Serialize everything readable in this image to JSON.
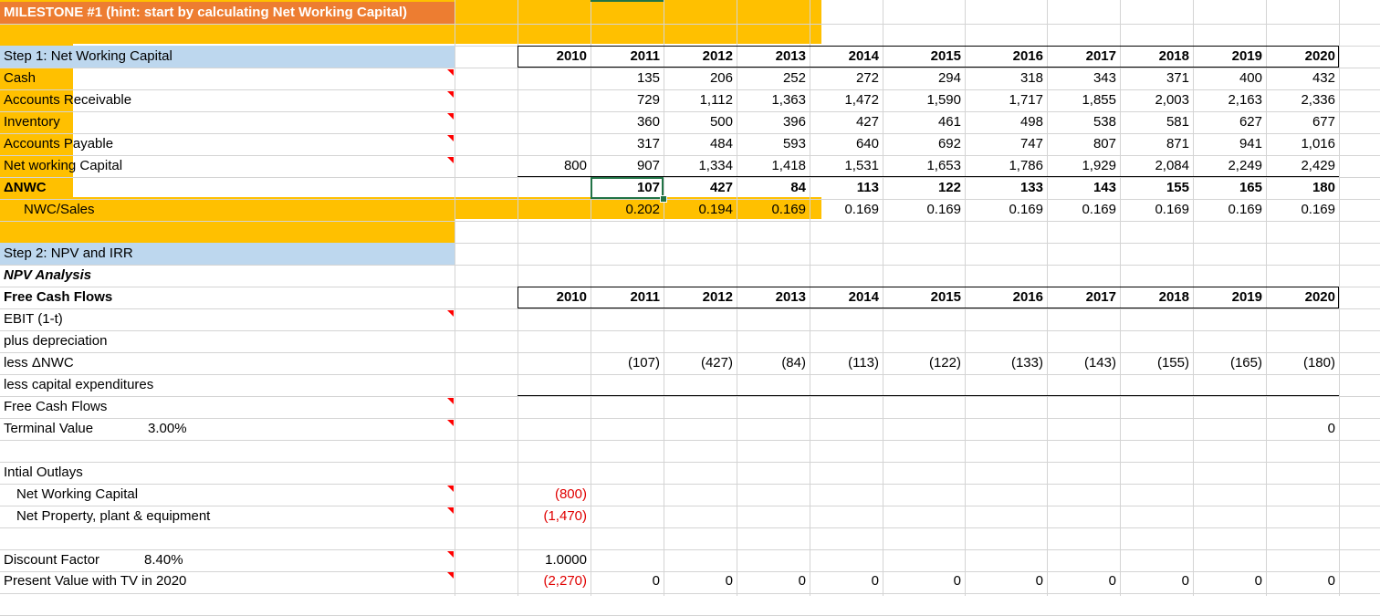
{
  "milestone_title": "MILESTONE #1 (hint: start by calculating Net Working Capital)",
  "years": [
    "2010",
    "2011",
    "2012",
    "2013",
    "2014",
    "2015",
    "2016",
    "2017",
    "2018",
    "2019",
    "2020"
  ],
  "step1": {
    "title": "Step 1: Net Working Capital",
    "rows": [
      {
        "label": "Cash",
        "values": [
          "",
          "135",
          "206",
          "252",
          "272",
          "294",
          "318",
          "343",
          "371",
          "400",
          "432"
        ],
        "bold": false
      },
      {
        "label": "Accounts Receivable",
        "values": [
          "",
          "729",
          "1,112",
          "1,363",
          "1,472",
          "1,590",
          "1,717",
          "1,855",
          "2,003",
          "2,163",
          "2,336"
        ],
        "bold": false
      },
      {
        "label": "Inventory",
        "values": [
          "",
          "360",
          "500",
          "396",
          "427",
          "461",
          "498",
          "538",
          "581",
          "627",
          "677"
        ],
        "bold": false
      },
      {
        "label": "Accounts Payable",
        "values": [
          "",
          "317",
          "484",
          "593",
          "640",
          "692",
          "747",
          "807",
          "871",
          "941",
          "1,016"
        ],
        "bold": false
      },
      {
        "label": "Net working Capital",
        "values": [
          "800",
          "907",
          "1,334",
          "1,418",
          "1,531",
          "1,653",
          "1,786",
          "1,929",
          "2,084",
          "2,249",
          "2,429"
        ],
        "bold": false
      },
      {
        "label": "ΔNWC",
        "values": [
          "",
          "107",
          "427",
          "84",
          "113",
          "122",
          "133",
          "143",
          "155",
          "165",
          "180"
        ],
        "bold": true
      },
      {
        "label": "NWC/Sales",
        "values": [
          "",
          "0.202",
          "0.194",
          "0.169",
          "0.169",
          "0.169",
          "0.169",
          "0.169",
          "0.169",
          "0.169",
          "0.169"
        ],
        "bold": false
      }
    ]
  },
  "step2": {
    "title": "Step 2: NPV and IRR",
    "npv_label": "NPV Analysis",
    "fcf_header": "Free Cash Flows",
    "ebit_label": "EBIT (1-t)",
    "dep_label": "plus depreciation",
    "less_nwc_label": "less ΔNWC",
    "less_nwc_values": [
      "",
      "(107)",
      "(427)",
      "(84)",
      "(113)",
      "(122)",
      "(133)",
      "(143)",
      "(155)",
      "(165)",
      "(180)"
    ],
    "capex_label": "less capital expenditures",
    "fcf_label": "Free Cash Flows",
    "tv_label": "Terminal Value",
    "tv_rate": "3.00%",
    "tv_value": "0",
    "outlays_label": "Intial Outlays",
    "outlay_nwc_label": "Net Working Capital",
    "outlay_nwc_value": "(800)",
    "outlay_ppe_label": "Net Property, plant & equipment",
    "outlay_ppe_value": "(1,470)",
    "df_label": "Discount Factor",
    "df_rate": "8.40%",
    "df_value": "1.0000",
    "pv_label": "Present Value with TV in 2020",
    "pv_values": [
      "(2,270)",
      "0",
      "0",
      "0",
      "0",
      "0",
      "0",
      "0",
      "0",
      "0",
      "0"
    ]
  }
}
